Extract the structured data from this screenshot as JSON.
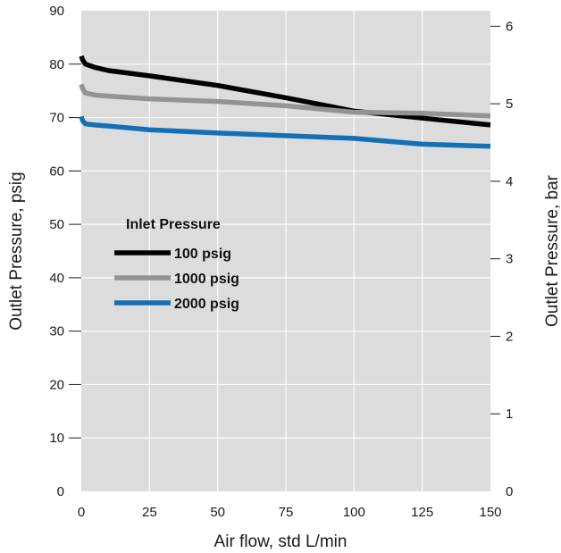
{
  "chart_data": {
    "type": "line",
    "xlabel": "Air flow, std L/min",
    "ylabel": "Outlet Pressure, psig",
    "y2label": "Outlet Pressure, bar",
    "xlim": [
      0,
      150
    ],
    "ylim": [
      0,
      90
    ],
    "y2lim": [
      0,
      6.2
    ],
    "x_ticks": [
      0,
      25,
      50,
      75,
      100,
      125,
      150
    ],
    "y_ticks": [
      0,
      10,
      20,
      30,
      40,
      50,
      60,
      70,
      80,
      90
    ],
    "y2_ticks": [
      0,
      1,
      2,
      3,
      4,
      5,
      6
    ],
    "grid": true,
    "background": "#dcdcdc",
    "legend": {
      "title": "Inlet Pressure",
      "placement": "center-left"
    },
    "series": [
      {
        "name": "100 psig",
        "color": "#000000",
        "points": [
          [
            0,
            81.5
          ],
          [
            0.5,
            80.8
          ],
          [
            1.5,
            80.0
          ],
          [
            5,
            79.4
          ],
          [
            10,
            78.8
          ],
          [
            25,
            77.8
          ],
          [
            50,
            76.0
          ],
          [
            75,
            73.7
          ],
          [
            100,
            71.2
          ],
          [
            125,
            69.9
          ],
          [
            150,
            68.6
          ]
        ]
      },
      {
        "name": "1000 psig",
        "color": "#939393",
        "points": [
          [
            0,
            76.2
          ],
          [
            0.5,
            75.4
          ],
          [
            1.5,
            74.6
          ],
          [
            5,
            74.2
          ],
          [
            10,
            74.0
          ],
          [
            25,
            73.5
          ],
          [
            50,
            73.0
          ],
          [
            75,
            72.2
          ],
          [
            100,
            71.0
          ],
          [
            125,
            70.8
          ],
          [
            150,
            70.3
          ]
        ]
      },
      {
        "name": "2000 psig",
        "color": "#1470b4",
        "points": [
          [
            0,
            70.2
          ],
          [
            0.5,
            69.4
          ],
          [
            1.5,
            68.8
          ],
          [
            5,
            68.6
          ],
          [
            10,
            68.4
          ],
          [
            25,
            67.7
          ],
          [
            50,
            67.1
          ],
          [
            75,
            66.6
          ],
          [
            100,
            66.1
          ],
          [
            125,
            65.0
          ],
          [
            150,
            64.6
          ]
        ]
      }
    ]
  }
}
